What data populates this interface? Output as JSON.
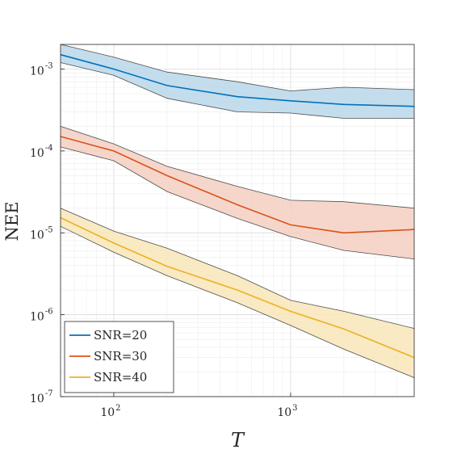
{
  "chart_data": {
    "type": "line",
    "xlabel": "T",
    "ylabel": "NEE",
    "xscale": "log",
    "yscale": "log",
    "xlim": [
      50,
      5000
    ],
    "ylim": [
      1e-07,
      0.002
    ],
    "grid": true,
    "legend_position": "bottom-left",
    "x_ticks": [
      {
        "value": 100,
        "base": "10",
        "exp": "2"
      },
      {
        "value": 1000,
        "base": "10",
        "exp": "3"
      }
    ],
    "y_ticks": [
      {
        "value": 1e-07,
        "base": "10",
        "exp": "-7"
      },
      {
        "value": 1e-06,
        "base": "10",
        "exp": "-6"
      },
      {
        "value": 1e-05,
        "base": "10",
        "exp": "-5"
      },
      {
        "value": 0.0001,
        "base": "10",
        "exp": "-4"
      },
      {
        "value": 0.001,
        "base": "10",
        "exp": "-3"
      }
    ],
    "x": [
      50,
      100,
      200,
      500,
      1000,
      2000,
      5000
    ],
    "series": [
      {
        "name": "SNR=20",
        "color": "#0072BD",
        "band_color": "#b9d7ea",
        "values": [
          0.0015,
          0.001,
          0.00063,
          0.00046,
          0.00041,
          0.00037,
          0.00035
        ],
        "upper": [
          0.002,
          0.0014,
          0.00092,
          0.0007,
          0.00054,
          0.0006,
          0.00056
        ],
        "lower": [
          0.0012,
          0.00084,
          0.00044,
          0.0003,
          0.00029,
          0.00025,
          0.00025
        ]
      },
      {
        "name": "SNR=30",
        "color": "#D95319",
        "band_color": "#f5cfc1",
        "values": [
          0.00015,
          0.0001,
          5e-05,
          2.2e-05,
          1.25e-05,
          1e-05,
          1.1e-05
        ],
        "upper": [
          0.0002,
          0.000122,
          6.5e-05,
          3.7e-05,
          2.5e-05,
          2.4e-05,
          2e-05
        ],
        "lower": [
          0.000112,
          7.6e-05,
          3.2e-05,
          1.5e-05,
          9e-06,
          6.1e-06,
          4.8e-06
        ]
      },
      {
        "name": "SNR=40",
        "color": "#EDB120",
        "band_color": "#f8e6b9",
        "values": [
          1.53e-05,
          7.5e-06,
          3.9e-06,
          2e-06,
          1.1e-06,
          6.7e-07,
          3e-07
        ],
        "upper": [
          2e-05,
          1.05e-05,
          6.5e-06,
          3e-06,
          1.5e-06,
          1.1e-06,
          6.8e-07
        ],
        "lower": [
          1.2e-05,
          5.8e-06,
          3e-06,
          1.4e-06,
          7.4e-07,
          3.8e-07,
          1.7e-07
        ]
      }
    ]
  }
}
